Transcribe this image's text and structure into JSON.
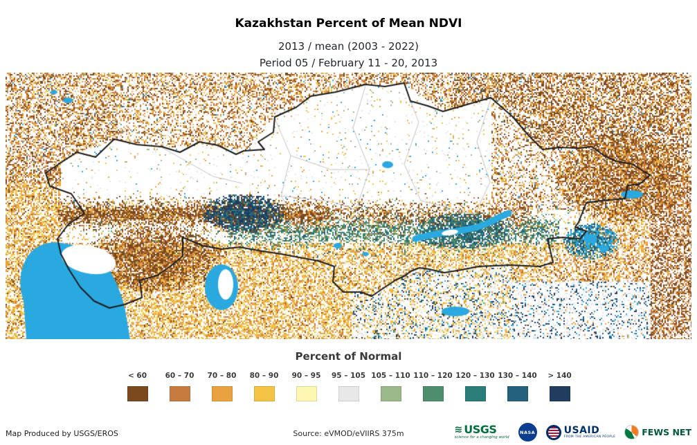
{
  "header": {
    "title": "Kazakhstan Percent of Mean NDVI",
    "subtitle1": "2013 / mean (2003 - 2022)",
    "subtitle2": "Period 05 / February 11 - 20, 2013"
  },
  "legend": {
    "title": "Percent of Normal",
    "classes": [
      {
        "label": "< 60",
        "color": "#7a4a1e"
      },
      {
        "label": "60 – 70",
        "color": "#c87b3e"
      },
      {
        "label": "70 – 80",
        "color": "#eaa23e"
      },
      {
        "label": "80 – 90",
        "color": "#f5c343"
      },
      {
        "label": "90 – 95",
        "color": "#fcf6b2"
      },
      {
        "label": "95 – 105",
        "color": "#e8e8e8"
      },
      {
        "label": "105 – 110",
        "color": "#9ab889"
      },
      {
        "label": "110 – 120",
        "color": "#4e8e6c"
      },
      {
        "label": "120 – 130",
        "color": "#2b7d79"
      },
      {
        "label": "130 – 140",
        "color": "#23617e"
      },
      {
        "label": "> 140",
        "color": "#203d5f"
      }
    ]
  },
  "map": {
    "water_color": "#2aa9e0",
    "border_color": "#1a1a1a",
    "admin_color": "#c4c4c4",
    "background": "#ffffff"
  },
  "footer": {
    "produced_by": "Map Produced by USGS/EROS",
    "source": "Source: eVMOD/eVIIRS 375m",
    "logos": {
      "usgs": {
        "text": "USGS",
        "tagline": "science for a changing world"
      },
      "nasa": {
        "text": "NASA"
      },
      "usaid": {
        "text": "USAID",
        "tagline": "FROM THE AMERICAN PEOPLE"
      },
      "fews": {
        "text": "FEWS NET"
      }
    }
  }
}
